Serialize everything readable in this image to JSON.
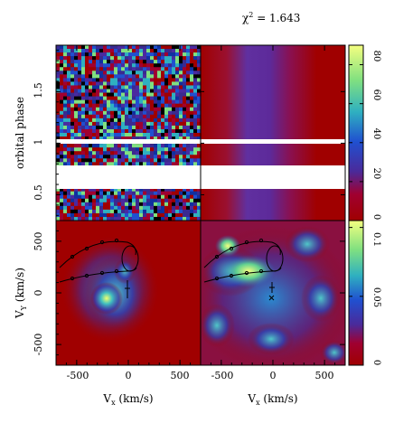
{
  "chart_data": [
    {
      "type": "heatmap",
      "title": "χ² = 1.643",
      "ylabel": "orbital phase",
      "xlabel": "",
      "ylim": [
        0.25,
        1.95
      ],
      "yticks": [
        "0.5",
        "1",
        "1.5"
      ],
      "gaps": [
        [
          0.545,
          0.685
        ],
        [
          0.94,
          0.965
        ]
      ],
      "panels": [
        "observed trailed spectra",
        "computed trailed spectra"
      ],
      "colorbar": {
        "range": [
          0,
          90
        ],
        "ticks": [
          "0",
          "20",
          "40",
          "60",
          "80"
        ]
      }
    },
    {
      "type": "heatmap",
      "panels": [
        "Doppler map",
        "Doppler map (enhanced)"
      ],
      "xlabel": "Vx (km/s)",
      "ylabel": "VY (km/s)",
      "xlim": [
        -700,
        700
      ],
      "ylim": [
        -700,
        700
      ],
      "xticks": [
        "-500",
        "0",
        "500"
      ],
      "yticks": [
        "-500",
        "0",
        "500"
      ],
      "colorbar": {
        "range": [
          0,
          0.105
        ],
        "ticks": [
          "0",
          "0.05",
          "0.1"
        ]
      }
    }
  ],
  "labels": {
    "title_chi": "χ",
    "title_sup": "2",
    "title_rest": " = 1.643",
    "phase_label": "orbital phase",
    "vy_main": "V",
    "vy_sub": "Y",
    "vy_unit": " (km/s)",
    "vx_main": "V",
    "vx_sub": "x",
    "vx_unit": " (km/s)",
    "phase_ticks": [
      "0.5",
      "1",
      "1.5"
    ],
    "vy_ticks": [
      "500",
      "0",
      "-500"
    ],
    "vx_ticks": [
      "-500",
      "0",
      "500"
    ],
    "cbar1_ticks": [
      "80",
      "60",
      "40",
      "20",
      "0"
    ],
    "cbar2_ticks": [
      "0.1",
      "0.05",
      "0"
    ]
  }
}
